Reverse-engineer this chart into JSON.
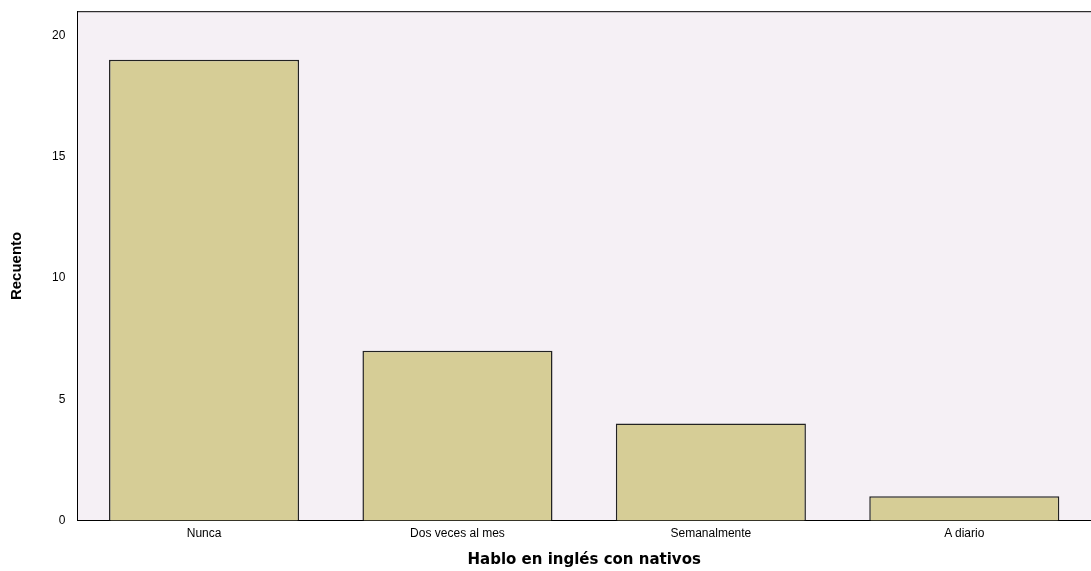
{
  "chart_data": {
    "type": "bar",
    "xlabel": "Hablo en inglés con nativos",
    "ylabel": "Recuento",
    "categories": [
      "Nunca",
      "Dos veces al mes",
      "Semanalmente",
      "A diario"
    ],
    "values": [
      19,
      7,
      4,
      1
    ],
    "color": "#d6cd96",
    "ylim": [
      0,
      21
    ],
    "yticks": [
      0,
      5,
      10,
      15,
      20
    ],
    "grid": false,
    "legend": false
  }
}
